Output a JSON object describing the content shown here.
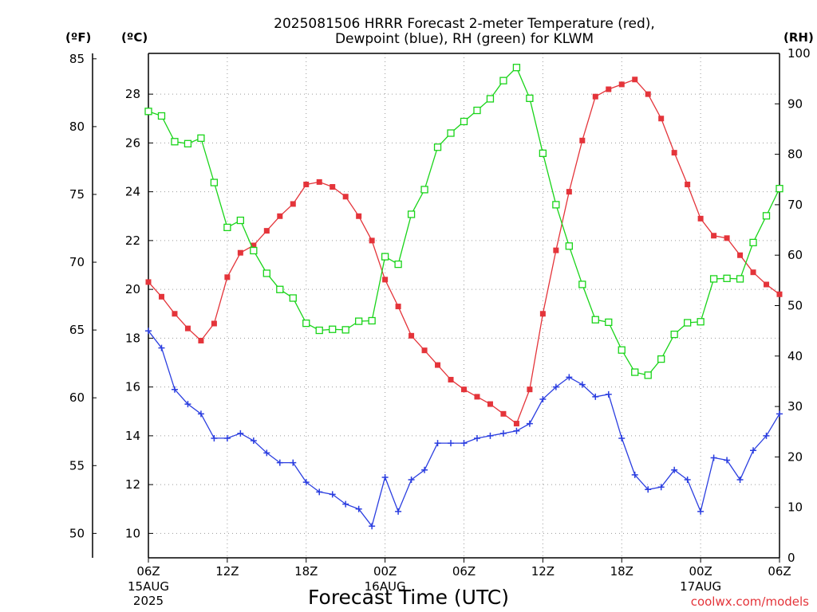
{
  "chart_data": {
    "type": "line",
    "title_line1": "2025081506 HRRR Forecast 2-meter Temperature (red),",
    "title_line2": "Dewpoint (blue), RH (green) for KLWM",
    "xlabel": "Forecast Time (UTC)",
    "credit": "coolwx.com/models",
    "left_axis_f": {
      "unit": "(ºF)",
      "range": [
        48.2,
        85.4
      ],
      "ticks": [
        50,
        55,
        60,
        65,
        70,
        75,
        80,
        85
      ]
    },
    "left_axis_c": {
      "unit": "(ºC)",
      "range": [
        9,
        29.67
      ],
      "ticks": [
        10,
        12,
        14,
        16,
        18,
        20,
        22,
        24,
        26,
        28
      ]
    },
    "right_axis": {
      "unit": "(RH)",
      "range": [
        0,
        100
      ],
      "ticks": [
        0,
        10,
        20,
        30,
        40,
        50,
        60,
        70,
        80,
        90,
        100
      ]
    },
    "x_axis": {
      "range_hours": [
        0,
        48
      ],
      "ticks": [
        {
          "hour": 0,
          "label": "06Z",
          "label2": "15AUG",
          "label3": "2025"
        },
        {
          "hour": 6,
          "label": "12Z"
        },
        {
          "hour": 12,
          "label": "18Z"
        },
        {
          "hour": 18,
          "label": "00Z",
          "label2": "16AUG"
        },
        {
          "hour": 24,
          "label": "06Z"
        },
        {
          "hour": 30,
          "label": "12Z"
        },
        {
          "hour": 36,
          "label": "18Z"
        },
        {
          "hour": 42,
          "label": "00Z",
          "label2": "17AUG"
        },
        {
          "hour": 48,
          "label": "06Z"
        }
      ]
    },
    "grid": true,
    "series": [
      {
        "name": "Temperature",
        "color": "#e4343a",
        "marker": "filled-square",
        "axis": "celsius",
        "x": [
          0,
          1,
          2,
          3,
          4,
          5,
          6,
          7,
          8,
          9,
          10,
          11,
          12,
          13,
          14,
          15,
          16,
          17,
          18,
          19,
          20,
          21,
          22,
          23,
          24,
          25,
          26,
          27,
          28,
          29,
          30,
          31,
          32,
          33,
          34,
          35,
          36,
          37,
          38,
          39,
          40,
          41,
          42,
          43,
          44,
          45,
          46,
          47,
          48
        ],
        "values": [
          20.3,
          19.7,
          19.0,
          18.4,
          17.9,
          18.6,
          20.5,
          21.5,
          21.8,
          22.4,
          23.0,
          23.5,
          24.3,
          24.4,
          24.2,
          23.8,
          23.0,
          22.0,
          20.4,
          19.3,
          18.1,
          17.5,
          16.9,
          16.3,
          15.9,
          15.6,
          15.3,
          14.9,
          14.5,
          15.9,
          19.0,
          21.6,
          24.0,
          26.1,
          27.9,
          28.2,
          28.4,
          28.6,
          28.0,
          27.0,
          25.6,
          24.3,
          22.9,
          22.2,
          22.1,
          21.4,
          20.7,
          20.2,
          19.8
        ]
      },
      {
        "name": "Dewpoint",
        "color": "#2b3ee0",
        "marker": "plus",
        "axis": "celsius",
        "x": [
          0,
          1,
          2,
          3,
          4,
          5,
          6,
          7,
          8,
          9,
          10,
          11,
          12,
          13,
          14,
          15,
          16,
          17,
          18,
          19,
          20,
          21,
          22,
          23,
          24,
          25,
          26,
          27,
          28,
          29,
          30,
          31,
          32,
          33,
          34,
          35,
          36,
          37,
          38,
          39,
          40,
          41,
          42,
          43,
          44,
          45,
          46,
          47,
          48
        ],
        "values": [
          18.3,
          17.6,
          15.9,
          15.3,
          14.9,
          13.9,
          13.9,
          14.1,
          13.8,
          13.3,
          12.9,
          12.9,
          12.1,
          11.7,
          11.6,
          11.2,
          11.0,
          10.3,
          12.3,
          10.9,
          12.2,
          12.6,
          13.7,
          13.7,
          13.7,
          13.9,
          14.0,
          14.1,
          14.2,
          14.5,
          15.5,
          16.0,
          16.4,
          16.1,
          15.6,
          15.7,
          13.9,
          12.4,
          11.8,
          11.9,
          12.6,
          12.2,
          10.9,
          13.1,
          13.0,
          12.2,
          13.4,
          14.0,
          14.9
        ]
      },
      {
        "name": "RH",
        "color": "#19d419",
        "marker": "open-square",
        "axis": "rh",
        "x": [
          0,
          1,
          2,
          3,
          4,
          5,
          6,
          7,
          8,
          9,
          10,
          11,
          12,
          13,
          14,
          15,
          16,
          17,
          18,
          19,
          20,
          21,
          22,
          23,
          24,
          25,
          26,
          27,
          28,
          29,
          30,
          31,
          32,
          33,
          34,
          35,
          36,
          37,
          38,
          39,
          40,
          41,
          42,
          43,
          44,
          45,
          46,
          47,
          48
        ],
        "values": [
          88.5,
          87.6,
          82.5,
          82.1,
          83.2,
          74.4,
          65.5,
          66.9,
          60.9,
          56.4,
          53.2,
          51.5,
          46.5,
          45.1,
          45.3,
          45.2,
          46.9,
          47.0,
          59.7,
          58.2,
          68.1,
          73.0,
          81.4,
          84.2,
          86.5,
          88.7,
          91.0,
          94.6,
          97.2,
          91.1,
          80.2,
          70.0,
          61.8,
          54.2,
          47.2,
          46.7,
          41.2,
          36.8,
          36.2,
          39.4,
          44.3,
          46.6,
          46.8,
          55.3,
          55.4,
          55.3,
          62.5,
          67.8,
          73.2
        ]
      }
    ]
  }
}
